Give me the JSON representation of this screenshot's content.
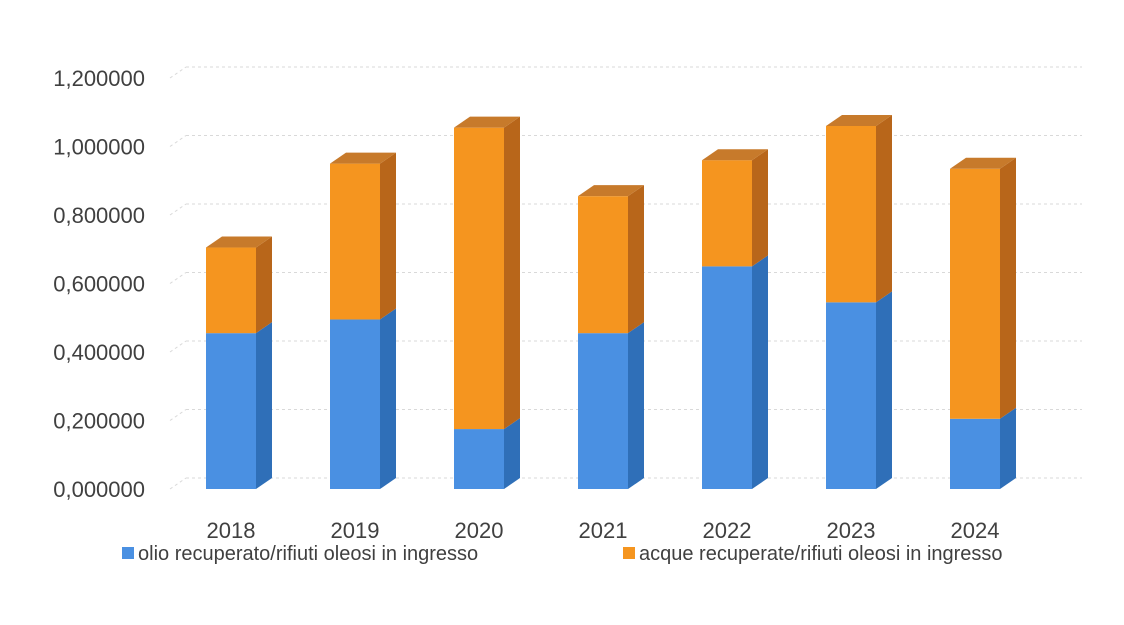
{
  "chart_data": {
    "type": "bar",
    "stacked": true,
    "style": "3d-column",
    "categories": [
      "2018",
      "2019",
      "2020",
      "2021",
      "2022",
      "2023",
      "2024"
    ],
    "series": [
      {
        "name": "olio recuperato/rifiuti oleosi in ingresso",
        "values": [
          0.455,
          0.495,
          0.175,
          0.455,
          0.65,
          0.545,
          0.205
        ],
        "color": "#4a90e2",
        "side_color": "#2f6fb8",
        "top_color": "#7fb2ea"
      },
      {
        "name": "acque recuperate/rifiuti oleosi in ingresso",
        "values": [
          0.25,
          0.455,
          0.88,
          0.4,
          0.31,
          0.515,
          0.73
        ],
        "color": "#f5951f",
        "side_color": "#b8661a",
        "top_color": "#c77a2b"
      }
    ],
    "yticks": [
      "0,000000",
      "0,200000",
      "0,400000",
      "0,600000",
      "0,800000",
      "1,000000",
      "1,200000"
    ],
    "ylim": [
      0,
      1.2
    ],
    "grid": true,
    "legend_position": "bottom",
    "title": "",
    "xlabel": "",
    "ylabel": ""
  }
}
